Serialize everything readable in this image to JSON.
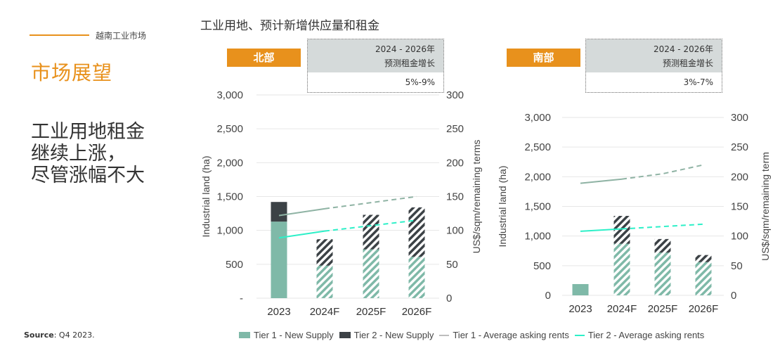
{
  "header": {
    "market_label": "越南工业市场"
  },
  "page": {
    "section_title": "市场展望",
    "headline_lines": [
      "工业用地租金",
      "继续上涨，",
      "尽管涨幅不大"
    ],
    "source_label": "Source",
    "source_text": ": Q4 2023."
  },
  "chart_title": "工业用地、预计新增供应量和租金",
  "colors": {
    "accent": "#E8911C",
    "tier1": "#7FB9A8",
    "tier2": "#3C4246",
    "tier1_rent": "#8FB3A4",
    "tier2_rent": "#2DF0C8",
    "box": "#D5DADA"
  },
  "legend": [
    {
      "label": "Tier 1 - New Supply",
      "kind": "bar",
      "color": "#7FB9A8"
    },
    {
      "label": "Tier 2 - New Supply",
      "kind": "bar",
      "color": "#3C4246"
    },
    {
      "label": "Tier 1 - Average asking rents",
      "kind": "line",
      "color": "#BDBDBD"
    },
    {
      "label": "Tier 2 - Average asking rents",
      "kind": "line",
      "color": "#2DF0C8"
    }
  ],
  "chart_data": [
    {
      "type": "bar",
      "region": "北部",
      "rent_growth_label_1": "2024 - 2026年",
      "rent_growth_label_2": "预测租金增长",
      "rent_growth_value": "5%-9%",
      "categories": [
        "2023",
        "2024F",
        "2025F",
        "2026F"
      ],
      "ylabel": "Industrial land (ha)",
      "y2label": "US$/sqm/remaining terms",
      "ylim": [
        0,
        3000
      ],
      "y2lim": [
        0,
        300
      ],
      "yticks": [
        "-",
        "500",
        "1,000",
        "1,500",
        "2,000",
        "2,500",
        "3,000"
      ],
      "y2ticks": [
        "0",
        "50",
        "100",
        "150",
        "200",
        "250",
        "300"
      ],
      "series": [
        {
          "name": "Tier 1 - New Supply",
          "values": [
            1130,
            480,
            720,
            610
          ]
        },
        {
          "name": "Tier 2 - New Supply",
          "values": [
            290,
            390,
            510,
            730
          ]
        },
        {
          "name": "Tier 1 - Average asking rents",
          "values": [
            122,
            132,
            141,
            150
          ]
        },
        {
          "name": "Tier 2 - Average asking rents",
          "values": [
            89,
            99,
            107,
            115
          ]
        }
      ]
    },
    {
      "type": "bar",
      "region": "南部",
      "rent_growth_label_1": "2024 - 2026年",
      "rent_growth_label_2": "预测租金增长",
      "rent_growth_value": "3%-7%",
      "categories": [
        "2023",
        "2024F",
        "2025F",
        "2026F"
      ],
      "ylabel": "Industrial land (ha)",
      "y2label": "US$/sqm/remaining term",
      "ylim": [
        0,
        3000
      ],
      "y2lim": [
        0,
        300
      ],
      "yticks": [
        "0",
        "500",
        "1,000",
        "1,500",
        "2,000",
        "2,500",
        "3,000"
      ],
      "y2ticks": [
        "0",
        "50",
        "100",
        "150",
        "200",
        "250",
        "300"
      ],
      "series": [
        {
          "name": "Tier 1 - New Supply",
          "values": [
            190,
            870,
            720,
            560
          ]
        },
        {
          "name": "Tier 2 - New Supply",
          "values": [
            0,
            470,
            230,
            120
          ]
        },
        {
          "name": "Tier 1 - Average asking rents",
          "values": [
            189,
            196,
            205,
            220
          ]
        },
        {
          "name": "Tier 2 - Average asking rents",
          "values": [
            108,
            112,
            116,
            120
          ]
        }
      ]
    }
  ]
}
